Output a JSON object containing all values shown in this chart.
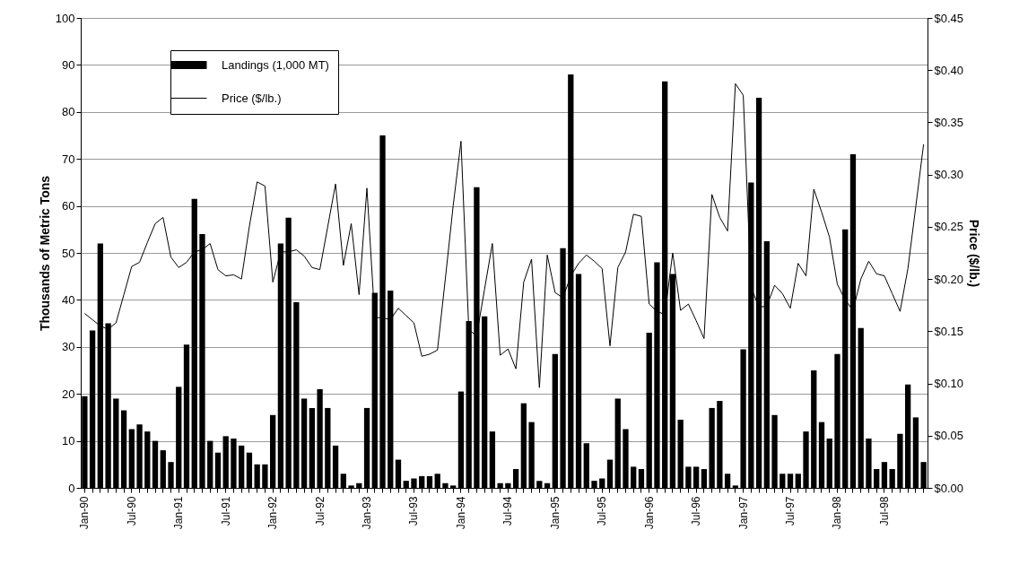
{
  "chart_data": {
    "type": "bar",
    "ylabel": "Thousands of Metric Tons",
    "y2label": "Price ($/lb.)",
    "categories": [
      "Jan-90",
      null,
      null,
      null,
      null,
      null,
      "Jul-90",
      null,
      null,
      null,
      null,
      null,
      "Jan-91",
      null,
      null,
      null,
      null,
      null,
      "Jul-91",
      null,
      null,
      null,
      null,
      null,
      "Jan-92",
      null,
      null,
      null,
      null,
      null,
      "Jul-92",
      null,
      null,
      null,
      null,
      null,
      "Jan-93",
      null,
      null,
      null,
      null,
      null,
      "Jul-93",
      null,
      null,
      null,
      null,
      null,
      "Jan-94",
      null,
      null,
      null,
      null,
      null,
      "Jul-94",
      null,
      null,
      null,
      null,
      null,
      "Jan-95",
      null,
      null,
      null,
      null,
      null,
      "Jul-95",
      null,
      null,
      null,
      null,
      null,
      "Jan-96",
      null,
      null,
      null,
      null,
      null,
      "Jul-96",
      null,
      null,
      null,
      null,
      null,
      "Jan-97",
      null,
      null,
      null,
      null,
      null,
      "Jul-97",
      null,
      null,
      null,
      null,
      null,
      "Jan-98",
      null,
      null,
      null,
      null,
      null,
      "Jul-98",
      null,
      null,
      null,
      null,
      null
    ],
    "ylim": [
      0,
      100
    ],
    "yticks": [
      0,
      10,
      20,
      30,
      40,
      50,
      60,
      70,
      80,
      90,
      100
    ],
    "y2lim": [
      0,
      0.45
    ],
    "y2ticks": [
      {
        "value": 0,
        "label": "$0.00"
      },
      {
        "value": 0.05,
        "label": "$0.05"
      },
      {
        "value": 0.1,
        "label": "$0.10"
      },
      {
        "value": 0.15,
        "label": "$0.15"
      },
      {
        "value": 0.2,
        "label": "$0.20"
      },
      {
        "value": 0.25,
        "label": "$0.25"
      },
      {
        "value": 0.3,
        "label": "$0.30"
      },
      {
        "value": 0.35,
        "label": "$0.35"
      },
      {
        "value": 0.4,
        "label": "$0.40"
      },
      {
        "value": 0.45,
        "label": "$0.45"
      }
    ],
    "grid": "y",
    "legend": "top left",
    "series": [
      {
        "name": "Landings (1,000 MT)",
        "color": "#000000",
        "values": [
          19.5,
          33.5,
          52,
          35,
          19,
          16.5,
          12.5,
          13.5,
          12,
          10,
          8,
          5.5,
          21.5,
          30.5,
          61.5,
          54,
          10,
          7.5,
          11,
          10.5,
          9,
          7.5,
          5,
          5,
          15.5,
          52,
          57.5,
          39.5,
          19,
          17,
          21,
          17,
          9,
          3,
          0.5,
          1,
          17,
          41.5,
          75,
          42,
          6,
          1.5,
          2,
          2.5,
          2.5,
          3,
          1,
          0.5,
          20.5,
          35.5,
          64,
          36.5,
          12,
          1,
          1,
          4,
          18,
          14,
          1.5,
          1,
          28.5,
          51,
          88,
          45.5,
          9.5,
          1.5,
          2,
          6,
          19,
          12.5,
          4.5,
          4,
          33,
          48,
          86.5,
          45.5,
          14.5,
          4.5,
          4.5,
          4,
          17,
          18.5,
          3,
          0.5,
          29.5,
          65,
          83,
          52.5,
          15.5,
          3,
          3,
          3,
          12,
          25,
          14,
          10.5,
          28.5,
          55,
          71,
          34,
          10.5,
          4,
          5.5,
          4,
          11.5,
          22,
          15,
          5.5
        ]
      },
      {
        "name": "Price ($/lb.)",
        "type": "line",
        "axis": "y2",
        "color": "#000000",
        "values": [
          0.167,
          0.161,
          0.155,
          0.152,
          0.158,
          0.185,
          0.212,
          0.216,
          0.235,
          0.253,
          0.259,
          0.221,
          0.211,
          0.216,
          0.226,
          0.228,
          0.234,
          0.209,
          0.203,
          0.204,
          0.2,
          0.25,
          0.293,
          0.289,
          0.197,
          0.226,
          0.226,
          0.228,
          0.222,
          0.211,
          0.209,
          0.25,
          0.291,
          0.213,
          0.253,
          0.185,
          0.287,
          0.163,
          0.163,
          0.161,
          0.172,
          0.165,
          0.158,
          0.126,
          0.128,
          0.132,
          0.2,
          0.27,
          0.332,
          0.151,
          0.146,
          0.19,
          0.234,
          0.127,
          0.133,
          0.114,
          0.197,
          0.219,
          0.096,
          0.223,
          0.187,
          0.182,
          0.203,
          0.215,
          0.223,
          0.217,
          0.21,
          0.136,
          0.211,
          0.226,
          0.262,
          0.26,
          0.176,
          0.169,
          0.166,
          0.225,
          0.17,
          0.176,
          0.16,
          0.143,
          0.281,
          0.259,
          0.246,
          0.387,
          0.376,
          0.192,
          0.173,
          0.174,
          0.194,
          0.186,
          0.172,
          0.215,
          0.203,
          0.286,
          0.264,
          0.24,
          0.195,
          0.18,
          0.17,
          0.2,
          0.217,
          0.205,
          0.203,
          0.186,
          0.169,
          0.21,
          0.269,
          0.329
        ]
      }
    ]
  }
}
